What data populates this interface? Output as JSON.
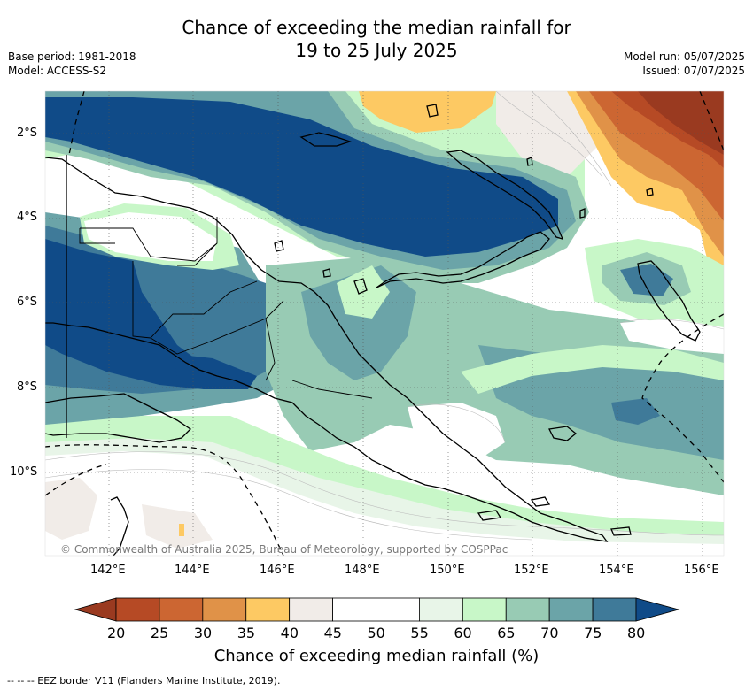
{
  "title_line1": "Chance of exceeding the median rainfall for",
  "title_line2": "19 to 25 July 2025",
  "base_period": "Base period: 1981-2018",
  "model": "Model: ACCESS-S2",
  "model_run": "Model run: 05/07/2025",
  "issued": "Issued: 07/07/2025",
  "lat_labels": [
    "2°S",
    "4°S",
    "6°S",
    "8°S",
    "10°S"
  ],
  "lon_labels": [
    "142°E",
    "144°E",
    "146°E",
    "148°E",
    "150°E",
    "152°E",
    "154°E",
    "156°E"
  ],
  "credit": "© Commonwealth of Australia 2025, Bureau of Meteorology, supported by COSPPac",
  "colorbar": {
    "ticks": [
      "20",
      "25",
      "30",
      "35",
      "40",
      "45",
      "50",
      "55",
      "60",
      "65",
      "70",
      "75",
      "80"
    ],
    "colors": [
      "#9a3a20",
      "#b64a25",
      "#cc6632",
      "#e09248",
      "#fdc963",
      "#f1ece8",
      "#ffffff",
      "#ffffff",
      "#e8f5e8",
      "#c8f7c8",
      "#98cbb4",
      "#6ba4a8",
      "#3f7a99",
      "#104b88"
    ],
    "label": "Chance of exceeding median rainfall (%)"
  },
  "footer": "-- -- -- EEZ border V11 (Flanders Marine Institute, 2019)."
}
